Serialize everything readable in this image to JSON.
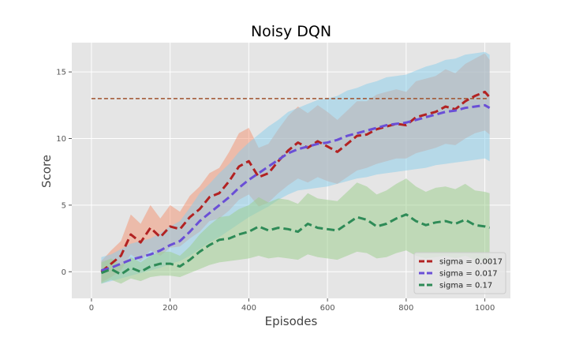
{
  "chart_data": {
    "type": "line",
    "title": "Noisy DQN",
    "xlabel": "Episodes",
    "ylabel": "Score",
    "xlim": [
      -50,
      1065
    ],
    "ylim": [
      -2,
      17.2
    ],
    "xticks": [
      0,
      200,
      400,
      600,
      800,
      1000
    ],
    "yticks": [
      0,
      5,
      10,
      15
    ],
    "grid": true,
    "legend_position": "lower-right",
    "reference_line": {
      "y": 13,
      "x_range": [
        0,
        1010
      ],
      "color": "#a0522d",
      "style": "dashed"
    },
    "series": [
      {
        "name": "sigma = 0.0017",
        "color": "#b22222",
        "band_color": "#f4916f",
        "x": [
          25,
          50,
          75,
          100,
          125,
          150,
          175,
          200,
          225,
          250,
          275,
          300,
          325,
          350,
          375,
          400,
          425,
          450,
          475,
          500,
          525,
          550,
          575,
          600,
          625,
          650,
          675,
          700,
          725,
          750,
          775,
          800,
          825,
          850,
          875,
          900,
          925,
          950,
          975,
          1000,
          1012
        ],
        "y": [
          0.0,
          0.6,
          1.2,
          2.8,
          2.2,
          3.3,
          2.6,
          3.4,
          3.2,
          4.1,
          4.7,
          5.6,
          5.9,
          6.8,
          7.9,
          8.3,
          7.1,
          7.4,
          8.3,
          9.1,
          9.7,
          9.3,
          9.8,
          9.4,
          9.0,
          9.6,
          10.2,
          10.3,
          10.7,
          10.9,
          11.1,
          11.0,
          11.6,
          11.8,
          12.0,
          12.4,
          12.2,
          12.8,
          13.2,
          13.5,
          13.1
        ],
        "lower": [
          -0.8,
          -0.4,
          0.1,
          1.3,
          0.8,
          1.6,
          1.2,
          1.8,
          1.9,
          2.5,
          3.0,
          3.8,
          4.0,
          4.6,
          5.4,
          5.8,
          4.9,
          5.2,
          5.9,
          6.5,
          7.0,
          6.7,
          7.1,
          6.8,
          6.6,
          7.1,
          7.6,
          7.8,
          8.1,
          8.3,
          8.5,
          8.5,
          8.9,
          9.1,
          9.3,
          9.6,
          9.5,
          10.0,
          10.4,
          10.6,
          10.3
        ],
        "upper": [
          0.8,
          1.6,
          2.3,
          4.3,
          3.6,
          5.0,
          4.0,
          5.0,
          4.5,
          5.7,
          6.4,
          7.4,
          7.8,
          9.0,
          10.4,
          10.8,
          9.3,
          9.6,
          10.7,
          11.7,
          12.4,
          11.9,
          12.5,
          12.0,
          11.4,
          12.1,
          12.8,
          12.8,
          13.3,
          13.5,
          13.7,
          13.5,
          14.3,
          14.5,
          14.7,
          15.2,
          14.9,
          15.6,
          16.0,
          16.4,
          15.9
        ]
      },
      {
        "name": "sigma = 0.017",
        "color": "#6a4fd6",
        "band_color": "#87ceeb",
        "x": [
          25,
          50,
          75,
          100,
          125,
          150,
          175,
          200,
          225,
          250,
          275,
          300,
          325,
          350,
          375,
          400,
          425,
          450,
          475,
          500,
          525,
          550,
          575,
          600,
          625,
          650,
          675,
          700,
          725,
          750,
          775,
          800,
          825,
          850,
          875,
          900,
          925,
          950,
          975,
          1000,
          1012
        ],
        "y": [
          0.1,
          0.3,
          0.6,
          0.9,
          1.1,
          1.3,
          1.6,
          2.0,
          2.3,
          3.0,
          3.8,
          4.4,
          5.0,
          5.6,
          6.3,
          6.9,
          7.4,
          7.9,
          8.4,
          8.9,
          9.2,
          9.4,
          9.6,
          9.7,
          9.9,
          10.2,
          10.4,
          10.6,
          10.8,
          11.0,
          11.1,
          11.2,
          11.4,
          11.6,
          11.8,
          12.0,
          12.1,
          12.3,
          12.4,
          12.5,
          12.3
        ],
        "lower": [
          -0.9,
          -0.7,
          -0.5,
          -0.3,
          -0.1,
          0.1,
          0.3,
          0.6,
          0.8,
          1.2,
          1.7,
          2.2,
          2.6,
          3.1,
          3.6,
          4.1,
          4.5,
          4.9,
          5.4,
          5.8,
          6.1,
          6.2,
          6.3,
          6.4,
          6.6,
          6.8,
          7.0,
          7.1,
          7.3,
          7.4,
          7.5,
          7.6,
          7.7,
          7.8,
          8.0,
          8.1,
          8.2,
          8.3,
          8.4,
          8.5,
          8.3
        ],
        "upper": [
          1.1,
          1.3,
          1.7,
          2.1,
          2.3,
          2.5,
          2.9,
          3.4,
          3.8,
          4.8,
          5.9,
          6.6,
          7.4,
          8.1,
          9.0,
          9.7,
          10.3,
          10.9,
          11.4,
          12.0,
          12.3,
          12.6,
          12.9,
          13.0,
          13.2,
          13.6,
          13.8,
          14.1,
          14.3,
          14.6,
          14.7,
          14.8,
          15.1,
          15.4,
          15.6,
          15.9,
          16.0,
          16.3,
          16.4,
          16.5,
          16.3
        ]
      },
      {
        "name": "sigma = 0.17",
        "color": "#2e8b57",
        "band_color": "#9acd8a",
        "x": [
          25,
          50,
          75,
          100,
          125,
          150,
          175,
          200,
          225,
          250,
          275,
          300,
          325,
          350,
          375,
          400,
          425,
          450,
          475,
          500,
          525,
          550,
          575,
          600,
          625,
          650,
          675,
          700,
          725,
          750,
          775,
          800,
          825,
          850,
          875,
          900,
          925,
          950,
          975,
          1000,
          1012
        ],
        "y": [
          -0.1,
          0.2,
          -0.2,
          0.3,
          0.0,
          0.4,
          0.6,
          0.6,
          0.4,
          0.9,
          1.5,
          2.0,
          2.4,
          2.5,
          2.8,
          3.0,
          3.4,
          3.1,
          3.3,
          3.2,
          3.0,
          3.6,
          3.3,
          3.2,
          3.1,
          3.6,
          4.1,
          3.9,
          3.4,
          3.6,
          4.0,
          4.3,
          3.8,
          3.5,
          3.7,
          3.8,
          3.6,
          3.9,
          3.5,
          3.4,
          3.3
        ],
        "lower": [
          -0.9,
          -0.6,
          -0.9,
          -0.5,
          -0.7,
          -0.4,
          -0.3,
          -0.3,
          -0.4,
          -0.1,
          0.2,
          0.5,
          0.7,
          0.8,
          0.9,
          1.0,
          1.2,
          1.0,
          1.1,
          1.0,
          0.9,
          1.3,
          1.1,
          1.0,
          0.9,
          1.2,
          1.5,
          1.4,
          1.0,
          1.1,
          1.4,
          1.6,
          1.2,
          1.0,
          1.1,
          1.2,
          1.0,
          1.2,
          0.9,
          0.8,
          0.7
        ],
        "upper": [
          0.7,
          1.0,
          0.5,
          1.1,
          0.7,
          1.2,
          1.5,
          1.5,
          1.2,
          1.9,
          2.8,
          3.5,
          4.1,
          4.2,
          4.7,
          5.0,
          5.6,
          5.2,
          5.5,
          5.4,
          5.1,
          5.9,
          5.5,
          5.4,
          5.3,
          6.0,
          6.7,
          6.4,
          5.8,
          6.1,
          6.6,
          7.0,
          6.4,
          6.0,
          6.3,
          6.4,
          6.2,
          6.6,
          6.1,
          6.0,
          5.9
        ]
      }
    ]
  }
}
